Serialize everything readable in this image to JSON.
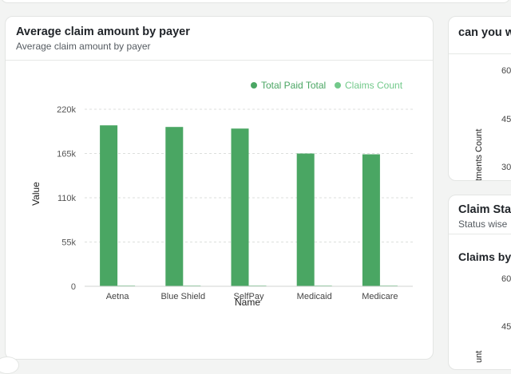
{
  "main_card": {
    "title": "Average claim amount by payer",
    "subtitle": "Average claim amount by payer"
  },
  "chart_data": {
    "type": "bar",
    "categories": [
      "Aetna",
      "Blue Shield",
      "SelfPay",
      "Medicaid",
      "Medicare"
    ],
    "series": [
      {
        "name": "Total Paid Total",
        "color": "#4aa663",
        "values": [
          200000,
          198000,
          196000,
          165000,
          164000
        ]
      },
      {
        "name": "Claims Count",
        "color": "#72c98a",
        "values": [
          0,
          0,
          0,
          0,
          0
        ]
      }
    ],
    "xlabel": "Name",
    "ylabel": "Value",
    "ylim": [
      0,
      220000
    ],
    "yticks": [
      0,
      55000,
      110000,
      165000,
      220000
    ],
    "ytick_labels": [
      "0",
      "55k",
      "110k",
      "165k",
      "220k"
    ],
    "grid": true,
    "legend_position": "top-right"
  },
  "side_card_1": {
    "title": "can you w",
    "y_axis_label": "tments Count",
    "ticks": [
      "60",
      "45",
      "30"
    ]
  },
  "side_card_2": {
    "title": "Claim Stat",
    "subtitle": "Status wise",
    "section_title": "Claims by",
    "y_axis_label": "unt",
    "ticks": [
      "60",
      "45"
    ]
  }
}
